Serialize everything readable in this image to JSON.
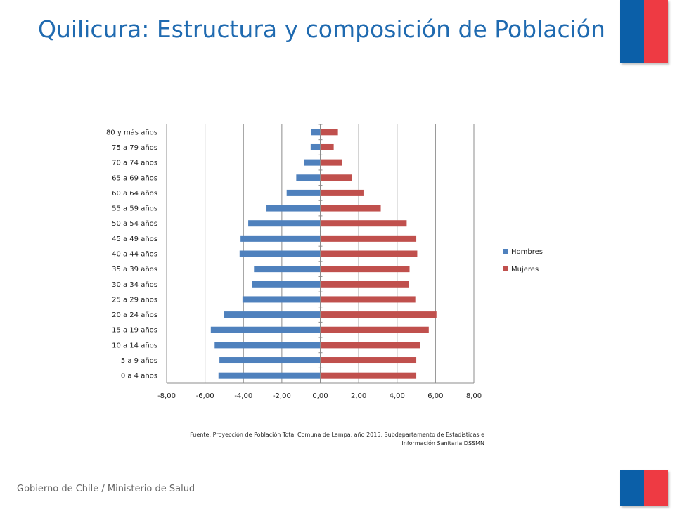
{
  "header": {
    "title": "Quilicura: Estructura y composición de Población"
  },
  "footer": {
    "text": "Gobierno de Chile / Ministerio de Salud"
  },
  "source": {
    "line1": "Fuente: Proyección de Población Total Comuna de Lampa, año 2015, Subdepartamento de Estadísticas e",
    "line2": "Información Sanitaria DSSMN"
  },
  "colors": {
    "title": "#1f6ab0",
    "flag_blue": "#0b5fa8",
    "flag_red": "#ee3a43"
  },
  "chart_data": {
    "type": "bar",
    "orientation": "horizontal",
    "categories": [
      "0 a 4 años",
      "5 a 9 años",
      "10 a 14 años",
      "15 a 19 años",
      "20 a 24 años",
      "25 a 29 años",
      "30 a 34 años",
      "35 a 39 años",
      "40 a 44 años",
      "45 a 49 años",
      "50 a 54 años",
      "55 a 59 años",
      "60 a 64 años",
      "65 a 69 años",
      "70 a 74 años",
      "75 a 79 años",
      "80 y más años"
    ],
    "series": [
      {
        "name": "Hombres",
        "color": "#4f81bd",
        "values": [
          -5.3,
          -5.25,
          -5.5,
          -5.7,
          -5.0,
          -4.05,
          -3.55,
          -3.45,
          -4.2,
          -4.15,
          -3.75,
          -2.8,
          -1.75,
          -1.25,
          -0.85,
          -0.5,
          -0.48
        ]
      },
      {
        "name": "Mujeres",
        "color": "#c0504d",
        "values": [
          5.0,
          5.0,
          5.2,
          5.65,
          6.05,
          4.95,
          4.6,
          4.65,
          5.05,
          5.0,
          4.5,
          3.15,
          2.25,
          1.65,
          1.15,
          0.7,
          0.92
        ]
      }
    ],
    "xlim": [
      -8,
      8
    ],
    "xticks": [
      "-8,00",
      "-6,00",
      "-4,00",
      "-2,00",
      "0,00",
      "2,00",
      "4,00",
      "6,00",
      "8,00"
    ],
    "tick_values": [
      -8,
      -6,
      -4,
      -2,
      0,
      2,
      4,
      6,
      8
    ],
    "grid": true,
    "legend_position": "right"
  }
}
